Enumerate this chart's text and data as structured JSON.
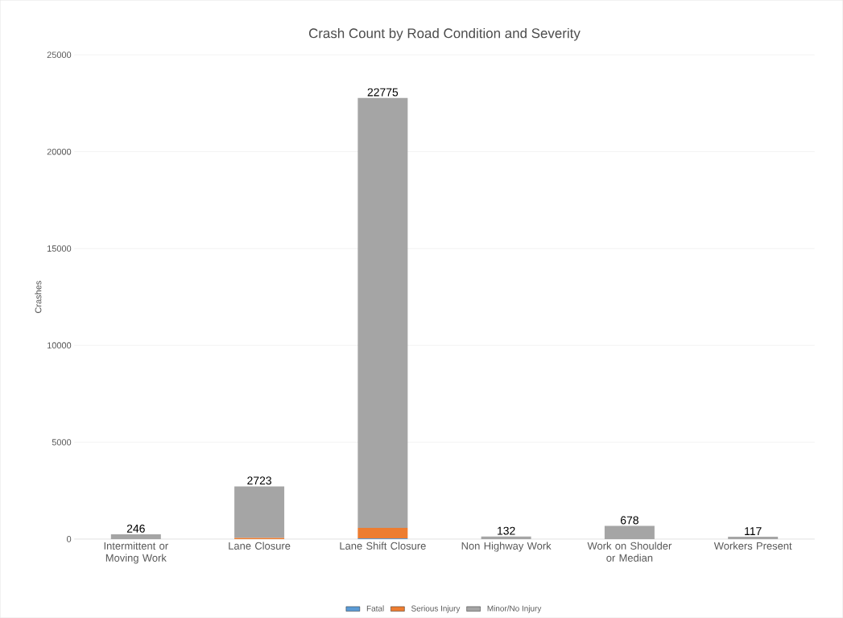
{
  "chart_data": {
    "type": "bar",
    "title": "Crash Count by Road Condition and Severity",
    "ylabel": "Crashes",
    "categories": [
      "Intermittent or Moving Work",
      "Lane Closure",
      "Lane Shift Closure",
      "Non Highway Work",
      "Work on Shoulder or Median",
      "Workers Present"
    ],
    "series": [
      {
        "name": "Fatal",
        "color": "#5b9bd5",
        "values": [
          0,
          0,
          40,
          0,
          0,
          0
        ]
      },
      {
        "name": "Serious Injury",
        "color": "#ed7d31",
        "values": [
          0,
          60,
          540,
          0,
          0,
          0
        ]
      },
      {
        "name": "Minor/No Injury",
        "color": "#a5a5a5",
        "values": [
          246,
          2663,
          22195,
          132,
          678,
          117
        ]
      }
    ],
    "stacked": true,
    "totals": [
      "246",
      "2723",
      "22775",
      "132",
      "678",
      "117"
    ],
    "ylim": [
      0,
      25000
    ],
    "yticks": [
      0,
      5000,
      10000,
      15000,
      20000,
      25000
    ],
    "grid": "y",
    "legend": "bottom"
  }
}
